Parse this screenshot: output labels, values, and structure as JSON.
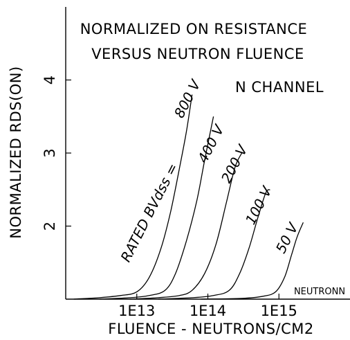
{
  "chart_data": {
    "type": "line",
    "title": [
      "NORMALIZED ON RESISTANCE",
      "VERSUS NEUTRON FLUENCE"
    ],
    "annotation_channel": "N CHANNEL",
    "annotation_corner": "NEUTRONN",
    "annotation_series_prefix": "RATED BVdss =",
    "xlabel": "FLUENCE - NEUTRONS/CM2",
    "ylabel": "NORMALIZED RDS(ON)",
    "x_scale": "log",
    "xlim": [
      1000000000000.0,
      1e+16
    ],
    "ylim": [
      1.0,
      5.0
    ],
    "x_ticks": [
      {
        "value": 10000000000000.0,
        "label": "1E13"
      },
      {
        "value": 100000000000000.0,
        "label": "1E14"
      },
      {
        "value": 1000000000000000.0,
        "label": "1E15"
      }
    ],
    "y_ticks": [
      {
        "value": 2,
        "label": "2"
      },
      {
        "value": 3,
        "label": "3"
      },
      {
        "value": 4,
        "label": "4"
      }
    ],
    "grid": false,
    "legend": "none",
    "series": [
      {
        "name": "800 V",
        "points": [
          [
            1300000000000.0,
            1.0
          ],
          [
            3000000000000.0,
            1.02
          ],
          [
            6000000000000.0,
            1.05
          ],
          [
            10000000000000.0,
            1.1
          ],
          [
            15000000000000.0,
            1.3
          ],
          [
            22000000000000.0,
            1.7
          ],
          [
            30000000000000.0,
            2.2
          ],
          [
            40000000000000.0,
            2.8
          ],
          [
            50000000000000.0,
            3.3
          ],
          [
            60000000000000.0,
            3.8
          ]
        ]
      },
      {
        "name": "400 V",
        "points": [
          [
            3000000000000.0,
            1.0
          ],
          [
            8000000000000.0,
            1.02
          ],
          [
            15000000000000.0,
            1.05
          ],
          [
            25000000000000.0,
            1.12
          ],
          [
            35000000000000.0,
            1.35
          ],
          [
            50000000000000.0,
            1.8
          ],
          [
            70000000000000.0,
            2.35
          ],
          [
            90000000000000.0,
            2.9
          ],
          [
            120000000000000.0,
            3.5
          ]
        ]
      },
      {
        "name": "200 V",
        "points": [
          [
            8000000000000.0,
            1.0
          ],
          [
            20000000000000.0,
            1.02
          ],
          [
            40000000000000.0,
            1.05
          ],
          [
            60000000000000.0,
            1.12
          ],
          [
            90000000000000.0,
            1.35
          ],
          [
            130000000000000.0,
            1.75
          ],
          [
            180000000000000.0,
            2.3
          ],
          [
            240000000000000.0,
            2.8
          ],
          [
            300000000000000.0,
            3.0
          ]
        ]
      },
      {
        "name": "100 V",
        "points": [
          [
            20000000000000.0,
            1.0
          ],
          [
            60000000000000.0,
            1.02
          ],
          [
            120000000000000.0,
            1.05
          ],
          [
            200000000000000.0,
            1.12
          ],
          [
            280000000000000.0,
            1.35
          ],
          [
            380000000000000.0,
            1.7
          ],
          [
            500000000000000.0,
            2.1
          ],
          [
            650000000000000.0,
            2.45
          ],
          [
            750000000000000.0,
            2.5
          ]
        ]
      },
      {
        "name": "50 V",
        "points": [
          [
            80000000000000.0,
            1.0
          ],
          [
            300000000000000.0,
            1.01
          ],
          [
            600000000000000.0,
            1.04
          ],
          [
            900000000000000.0,
            1.1
          ],
          [
            1200000000000000.0,
            1.3
          ],
          [
            1500000000000000.0,
            1.6
          ],
          [
            1800000000000000.0,
            1.85
          ],
          [
            2200000000000000.0,
            2.05
          ]
        ]
      }
    ],
    "series_labels": [
      "800 V",
      "400 V",
      "200 V",
      "100 V",
      "50 V"
    ]
  }
}
